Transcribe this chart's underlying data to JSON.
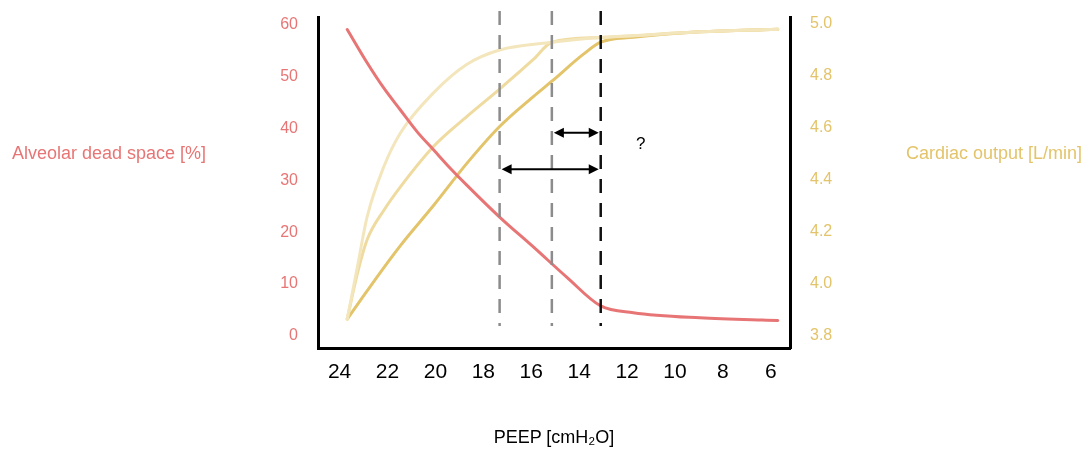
{
  "chart_data": {
    "type": "line",
    "xlabel": "PEEP [cmH₂O]",
    "ylabel": "Alveolar dead space [%]",
    "y2label": "Cardiac output [L/min]",
    "xlim": [
      24.9,
      5.2
    ],
    "xticks": [
      24,
      22,
      20,
      18,
      16,
      14,
      12,
      10,
      8,
      6
    ],
    "ylim": [
      -2.3,
      61.4
    ],
    "yticks": [
      0,
      10,
      20,
      30,
      40,
      50,
      60
    ],
    "y2lim": [
      3.754,
      5.027
    ],
    "y2ticks": [
      {
        "value": 3.8,
        "label": "3.8"
      },
      {
        "value": 4.0,
        "label": "4.0"
      },
      {
        "value": 4.2,
        "label": "4.2"
      },
      {
        "value": 4.4,
        "label": "4.4"
      },
      {
        "value": 4.6,
        "label": "4.6"
      },
      {
        "value": 4.8,
        "label": "4.8"
      },
      {
        "value": 5.0,
        "label": "5.0"
      }
    ],
    "series": [
      {
        "color": "#e87575",
        "x": [
          23.68,
          22.85,
          22.15,
          21.46,
          20.76,
          20.07,
          19.38,
          18.68,
          17.32,
          15.9,
          14.51,
          13.1,
          11.74,
          8.96,
          5.71
        ],
        "values": [
          59.0,
          52.6,
          47.7,
          43.5,
          39.3,
          35.8,
          32.3,
          29.0,
          22.9,
          17.1,
          11.3,
          5.8,
          4.5,
          3.5,
          3.0
        ]
      },
      {
        "color": "#f4e6bc",
        "axis": "y2",
        "x": [
          23.68,
          23.26,
          22.85,
          22.15,
          21.46,
          20.07,
          18.68,
          17.32,
          15.14,
          13.1,
          11.74,
          8.96,
          5.71
        ],
        "values": [
          3.865,
          4.064,
          4.258,
          4.452,
          4.581,
          4.736,
          4.845,
          4.9,
          4.93,
          4.948,
          4.955,
          4.97,
          4.98
        ]
      },
      {
        "color": "#efdb9f",
        "axis": "y2",
        "x": [
          23.68,
          23.26,
          22.85,
          22.15,
          21.46,
          20.07,
          18.68,
          17.32,
          15.9,
          15.14,
          13.1,
          11.74,
          8.96,
          5.71
        ],
        "values": [
          3.865,
          4.039,
          4.17,
          4.284,
          4.374,
          4.53,
          4.645,
          4.75,
          4.865,
          4.93,
          4.948,
          4.955,
          4.97,
          4.98
        ]
      },
      {
        "color": "#e3c46a",
        "axis": "y2",
        "x": [
          23.68,
          22.85,
          21.46,
          20.07,
          18.68,
          17.32,
          15.9,
          15.14,
          13.82,
          13.1,
          11.74,
          8.96,
          5.71
        ],
        "values": [
          3.865,
          3.974,
          4.148,
          4.303,
          4.465,
          4.606,
          4.722,
          4.78,
          4.884,
          4.93,
          4.949,
          4.97,
          4.98
        ]
      }
    ],
    "ref_lines": [
      {
        "axis": "x",
        "value": 17.32,
        "color": "#8c8c8c",
        "line_style": "dashed"
      },
      {
        "axis": "x",
        "value": 15.14,
        "color": "#8c8c8c",
        "line_style": "dashed"
      },
      {
        "axis": "x",
        "value": 13.1,
        "color": "#111111",
        "line_style": "dashed"
      }
    ],
    "annotations": [
      "?"
    ],
    "grid": false,
    "legend": false,
    "marker": "none",
    "line_style": "solid"
  }
}
